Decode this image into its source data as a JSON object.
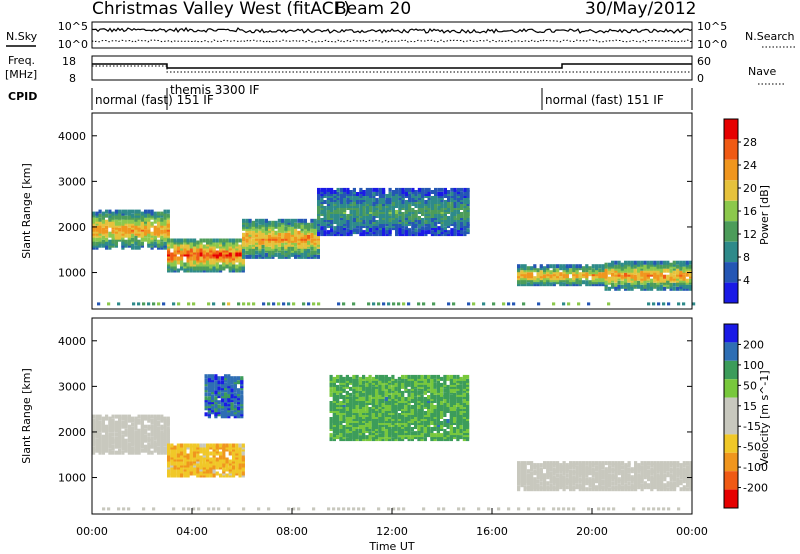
{
  "header": {
    "title": "Christmas Valley West (fitACF)",
    "beam": "Beam 20",
    "date": "30/May/2012"
  },
  "top_panels": {
    "nsky_label": "N.Sky",
    "nsearch_label": "N.Search",
    "noise_tick_top": "10^5",
    "noise_tick_bottom": "10^0",
    "freq_label_line1": "Freq.",
    "freq_label_line2": "[MHz]",
    "freq_tick_top": "18",
    "freq_tick_bottom": "8",
    "nave_label": "Nave",
    "nave_tick_top": "60",
    "nave_tick_bottom": "0",
    "cpid_label": "CPID"
  },
  "modes": [
    {
      "label": "normal (fast) 151 IF",
      "start_hour": 0,
      "end_hour": 3
    },
    {
      "label": "themis 3300 IF",
      "start_hour": 3,
      "end_hour": 18
    },
    {
      "label": "normal (fast) 151 IF",
      "start_hour": 18,
      "end_hour": 24
    }
  ],
  "colors": {
    "power": [
      "#1a1ae6",
      "#2456b4",
      "#2e8a8a",
      "#4c9c5a",
      "#8cc84c",
      "#e6c23c",
      "#f0961e",
      "#f05a14",
      "#e60000"
    ],
    "velocity": [
      "#e60000",
      "#f05a14",
      "#f0961e",
      "#f0c828",
      "#c8c8be",
      "#c8c8be",
      "#78c83c",
      "#3c9c5a",
      "#2e6eb4",
      "#1a1ae6"
    ],
    "ground_scatter": "#c8c8be"
  },
  "chart_data": [
    {
      "type": "heatmap",
      "panel": "power",
      "ylabel": "Slant Range [km]",
      "yticks": [
        "1000",
        "2000",
        "3000",
        "4000"
      ],
      "ylim": [
        200,
        4500
      ],
      "xlim": [
        0,
        24
      ],
      "colorbar_label": "Power [dB]",
      "colorbar_ticks": [
        "4",
        "8",
        "12",
        "16",
        "20",
        "24",
        "28"
      ],
      "colorbar_range": [
        0,
        32
      ],
      "scatter_bands": [
        {
          "start": 0.0,
          "end": 3.0,
          "r_low": 1500,
          "r_high": 2300,
          "peak": 24
        },
        {
          "start": 3.0,
          "end": 6.0,
          "r_low": 1000,
          "r_high": 1700,
          "peak": 28
        },
        {
          "start": 6.0,
          "end": 9.0,
          "r_low": 1300,
          "r_high": 2100,
          "peak": 24
        },
        {
          "start": 9.0,
          "end": 15.0,
          "r_low": 1800,
          "r_high": 2800,
          "peak": 12
        },
        {
          "start": 17.0,
          "end": 20.5,
          "r_low": 700,
          "r_high": 1100,
          "peak": 24
        },
        {
          "start": 20.5,
          "end": 24.0,
          "r_low": 600,
          "r_high": 1200,
          "peak": 24
        }
      ]
    },
    {
      "type": "heatmap",
      "panel": "velocity",
      "ylabel": "Slant Range [km]",
      "yticks": [
        "1000",
        "2000",
        "3000",
        "4000"
      ],
      "ylim": [
        200,
        4500
      ],
      "xlim": [
        0,
        24
      ],
      "xlabel": "Time UT",
      "xticks": [
        "00:00",
        "04:00",
        "08:00",
        "12:00",
        "16:00",
        "20:00",
        "00:00"
      ],
      "colorbar_label": "Velocity [m s^-1]",
      "colorbar_ticks": [
        "200",
        "100",
        "50",
        "15",
        "-15",
        "-50",
        "-100",
        "-200"
      ],
      "colorbar_range": [
        -250,
        250
      ],
      "scatter_bands": [
        {
          "start": 0.0,
          "end": 3.0,
          "r_low": 1500,
          "r_high": 2300,
          "vel": 0
        },
        {
          "start": 3.0,
          "end": 6.0,
          "r_low": 1000,
          "r_high": 1700,
          "vel": -40
        },
        {
          "start": 4.5,
          "end": 6.0,
          "r_low": 2300,
          "r_high": 3200,
          "vel": 150
        },
        {
          "start": 9.5,
          "end": 15.0,
          "r_low": 1800,
          "r_high": 3200,
          "vel": 60
        },
        {
          "start": 17.0,
          "end": 24.0,
          "r_low": 700,
          "r_high": 1300,
          "vel": 0
        }
      ]
    }
  ]
}
